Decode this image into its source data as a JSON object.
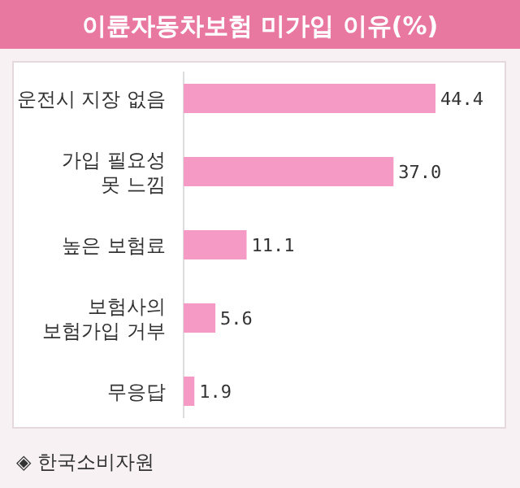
{
  "chart_data": {
    "type": "bar",
    "orientation": "horizontal",
    "title": "이륜자동차보험 미가입 이유(%)",
    "categories": [
      "운전시 지장 없음",
      "가입 필요성\n못 느낌",
      "높은 보험료",
      "보험사의\n보험가입 거부",
      "무응답"
    ],
    "values": [
      44.4,
      37.0,
      11.1,
      5.6,
      1.9
    ],
    "value_labels": [
      "44.4",
      "37.0",
      "11.1",
      "5.6",
      "1.9"
    ],
    "color": "#f59ac4",
    "annotations": [
      "◈ 한국소비자원"
    ]
  }
}
